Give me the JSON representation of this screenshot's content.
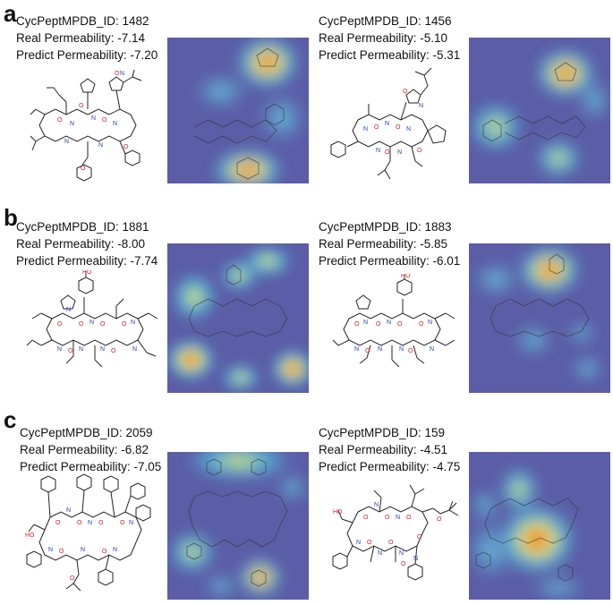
{
  "panels": [
    {
      "letter": "a",
      "entries": [
        {
          "id_label": "CycPeptMPDB_ID: 1482",
          "real_label": "Real Permeability: -7.14",
          "pred_label": "Predict Permeability: -7.20"
        },
        {
          "id_label": "CycPeptMPDB_ID: 1456",
          "real_label": "Real Permeability: -5.10",
          "pred_label": "Predict Permeability: -5.31"
        }
      ]
    },
    {
      "letter": "b",
      "entries": [
        {
          "id_label": "CycPeptMPDB_ID: 1881",
          "real_label": "Real Permeability: -8.00",
          "pred_label": "Predict Permeability: -7.74"
        },
        {
          "id_label": "CycPeptMPDB_ID: 1883",
          "real_label": "Real Permeability: -5.85",
          "pred_label": "Predict Permeability: -6.01"
        }
      ]
    },
    {
      "letter": "c",
      "entries": [
        {
          "id_label": "CycPeptMPDB_ID: 2059",
          "real_label": "Real Permeability: -6.82",
          "pred_label": "Predict Permeability: -7.05"
        },
        {
          "id_label": "CycPeptMPDB_ID: 159",
          "real_label": "Real Permeability: -4.51",
          "pred_label": "Predict Permeability: -4.75"
        }
      ]
    }
  ],
  "colors": {
    "heatmap_low": "#5b5da6",
    "heatmap_mid_cyan": "#57b6d8",
    "heatmap_yellow": "#f4e04d",
    "heatmap_high": "#e0302c",
    "bond": "#222222",
    "oxygen": "#d62020",
    "nitrogen": "#2040c0"
  }
}
